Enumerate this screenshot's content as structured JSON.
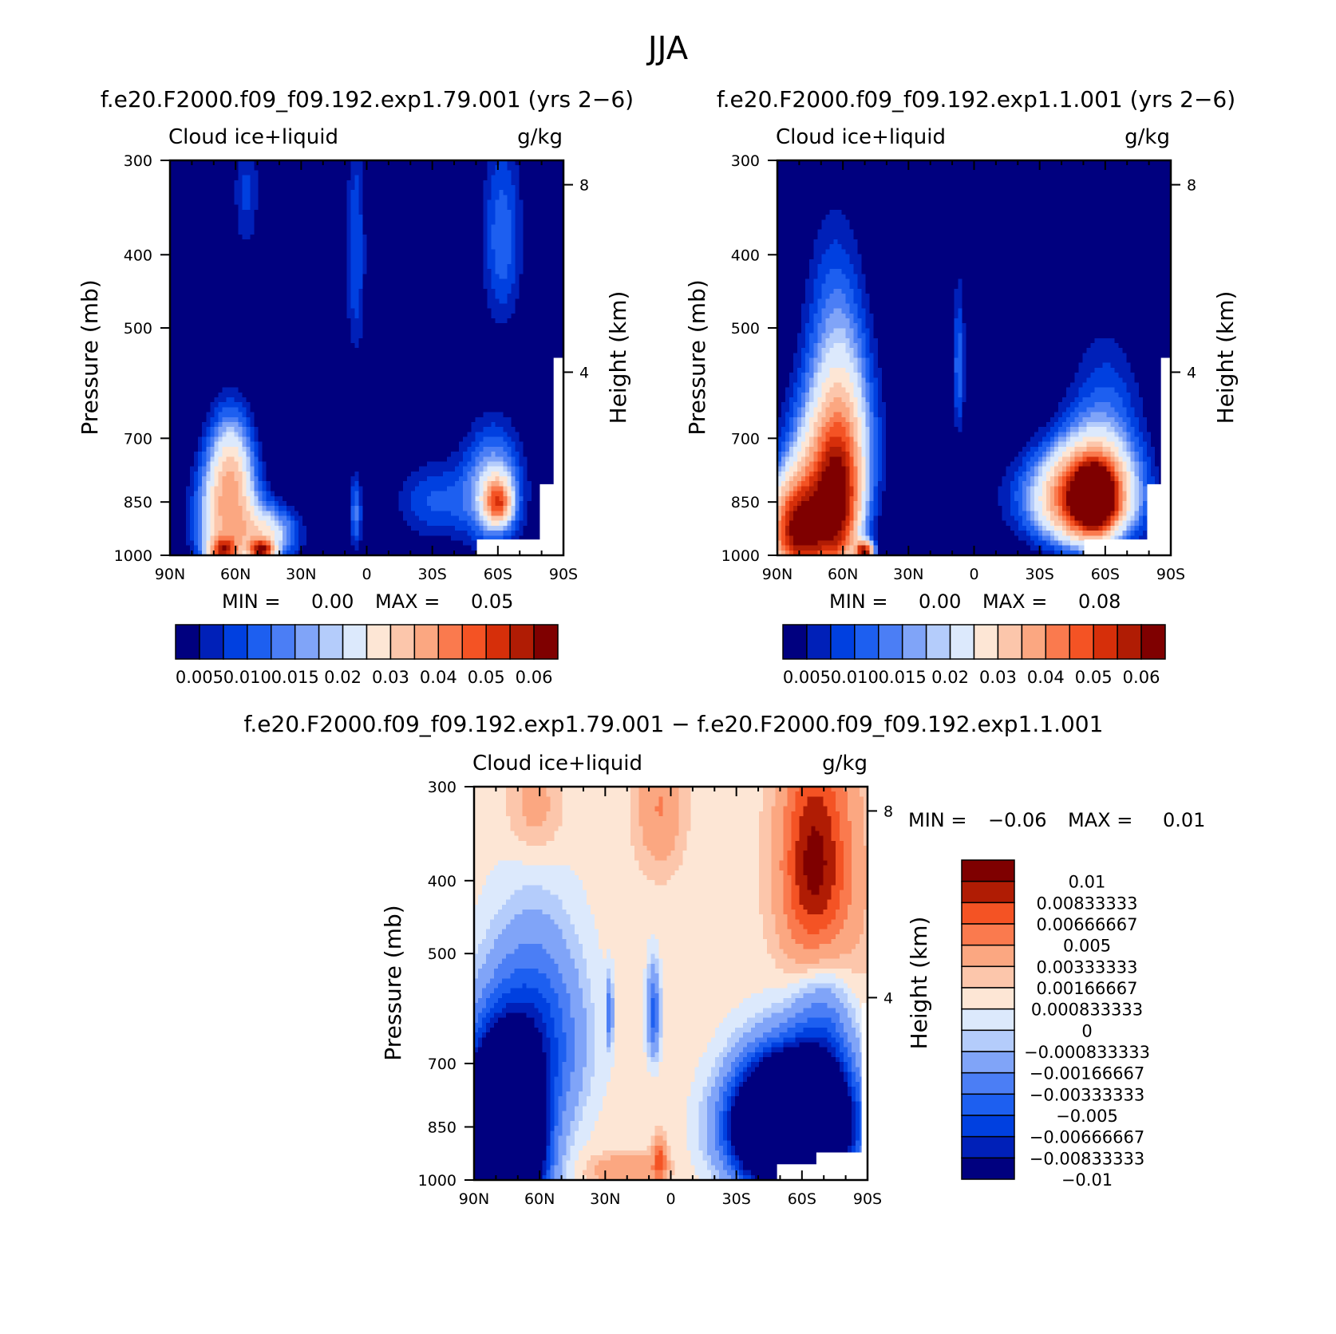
{
  "figure": {
    "season": "JJA",
    "case_a": "f.e20.F2000.f09_f09.192.exp1.79.001",
    "case_b": "f.e20.F2000.f09_f09.192.exp1.1.001",
    "diff_title": "f.e20.F2000.f09_f09.192.exp1.79.001 − f.e20.F2000.f09_f09.192.exp1.1.001"
  },
  "colors": {
    "seq": [
      "#00007f",
      "#0020b8",
      "#0040e0",
      "#1d5ff0",
      "#4b7ef5",
      "#80a4f8",
      "#b4ccfb",
      "#dce9fc",
      "#fde6d5",
      "#fcc6ab",
      "#fba781",
      "#fa7a4e",
      "#f45324",
      "#d62f0a",
      "#b01c04",
      "#7f0000"
    ],
    "diff": [
      "#00007f",
      "#0020b8",
      "#0040e0",
      "#1d5ff0",
      "#4b7ef5",
      "#80a4f8",
      "#b4ccfb",
      "#dce9fc",
      "#fde6d5",
      "#fcc6ab",
      "#fba781",
      "#fa7a4e",
      "#f45324",
      "#b01c04",
      "#7f0000"
    ]
  },
  "chart_data": [
    {
      "type": "contour",
      "id": "panel-a",
      "title": "f.e20.F2000.f09_f09.192.exp1.79.001 (yrs 2−6)",
      "left_label": "Cloud ice+liquid",
      "units": "g/kg",
      "ylabel": "Pressure (mb)",
      "y2label": "Height (km)",
      "xticks": [
        "90N",
        "60N",
        "30N",
        "0",
        "30S",
        "60S",
        "90S"
      ],
      "yticks": [
        "300",
        "400",
        "500",
        "700",
        "850",
        "1000"
      ],
      "y2ticks": [
        "8",
        "4"
      ],
      "stats": {
        "min_label": "MIN =",
        "min": "0.00",
        "max_label": "MAX =",
        "max": "0.05"
      },
      "colorbar_labels": [
        "0.005",
        "0.010",
        "0.015",
        "0.02",
        "0.03",
        "0.04",
        "0.05",
        "0.06"
      ],
      "blobs": [
        {
          "lat": 64,
          "p": 900,
          "w": 14,
          "h": 170,
          "v": 0.03
        },
        {
          "lat": 62,
          "p": 760,
          "w": 10,
          "h": 130,
          "v": 0.018
        },
        {
          "lat": 48,
          "p": 985,
          "w": 5,
          "h": 28,
          "v": 0.045
        },
        {
          "lat": 66,
          "p": 985,
          "w": 6,
          "h": 35,
          "v": 0.035
        },
        {
          "lat": 45,
          "p": 940,
          "w": 14,
          "h": 80,
          "v": 0.022
        },
        {
          "lat": -60,
          "p": 850,
          "w": 6,
          "h": 55,
          "v": 0.034
        },
        {
          "lat": -58,
          "p": 820,
          "w": 14,
          "h": 150,
          "v": 0.02
        },
        {
          "lat": -30,
          "p": 850,
          "w": 18,
          "h": 110,
          "v": 0.01
        },
        {
          "lat": 5,
          "p": 880,
          "w": 3,
          "h": 110,
          "v": 0.013
        },
        {
          "lat": 5,
          "p": 400,
          "w": 5,
          "h": 160,
          "v": 0.01
        },
        {
          "lat": -62,
          "p": 380,
          "w": 10,
          "h": 120,
          "v": 0.012
        },
        {
          "lat": 55,
          "p": 330,
          "w": 7,
          "h": 80,
          "v": 0.008
        }
      ]
    },
    {
      "type": "contour",
      "id": "panel-b",
      "title": "f.e20.F2000.f09_f09.192.exp1.1.001 (yrs 2−6)",
      "left_label": "Cloud ice+liquid",
      "units": "g/kg",
      "ylabel": "Pressure (mb)",
      "y2label": "Height (km)",
      "xticks": [
        "90N",
        "60N",
        "30N",
        "0",
        "30S",
        "60S",
        "90S"
      ],
      "yticks": [
        "300",
        "400",
        "500",
        "700",
        "850",
        "1000"
      ],
      "y2ticks": [
        "8",
        "4"
      ],
      "stats": {
        "min_label": "MIN =",
        "min": "0.00",
        "max_label": "MAX =",
        "max": "0.08"
      },
      "colorbar_labels": [
        "0.005",
        "0.010",
        "0.015",
        "0.02",
        "0.03",
        "0.04",
        "0.05",
        "0.06"
      ],
      "blobs": [
        {
          "lat": 80,
          "p": 930,
          "w": 14,
          "h": 140,
          "v": 0.06
        },
        {
          "lat": 62,
          "p": 880,
          "w": 10,
          "h": 180,
          "v": 0.042
        },
        {
          "lat": 66,
          "p": 760,
          "w": 18,
          "h": 180,
          "v": 0.028
        },
        {
          "lat": 60,
          "p": 620,
          "w": 14,
          "h": 180,
          "v": 0.014
        },
        {
          "lat": 50,
          "p": 990,
          "w": 4,
          "h": 30,
          "v": 0.055
        },
        {
          "lat": -55,
          "p": 840,
          "w": 8,
          "h": 70,
          "v": 0.065
        },
        {
          "lat": -52,
          "p": 840,
          "w": 18,
          "h": 120,
          "v": 0.04
        },
        {
          "lat": -45,
          "p": 840,
          "w": 28,
          "h": 120,
          "v": 0.02
        },
        {
          "lat": -60,
          "p": 700,
          "w": 18,
          "h": 200,
          "v": 0.012
        },
        {
          "lat": 7,
          "p": 560,
          "w": 3,
          "h": 140,
          "v": 0.012
        },
        {
          "lat": 65,
          "p": 450,
          "w": 14,
          "h": 140,
          "v": 0.006
        }
      ]
    },
    {
      "type": "contour",
      "id": "panel-diff",
      "title": "f.e20.F2000.f09_f09.192.exp1.79.001 − f.e20.F2000.f09_f09.192.exp1.1.001",
      "left_label": "Cloud ice+liquid",
      "units": "g/kg",
      "ylabel": "Pressure (mb)",
      "y2label": "Height (km)",
      "xticks": [
        "90N",
        "60N",
        "30N",
        "0",
        "30S",
        "60S",
        "90S"
      ],
      "yticks": [
        "300",
        "400",
        "500",
        "700",
        "850",
        "1000"
      ],
      "y2ticks": [
        "8",
        "4"
      ],
      "stats": {
        "min_label": "MIN =",
        "min": "−0.06",
        "max_label": "MAX =",
        "max": "0.01"
      },
      "colorbar_labels": [
        "0.01",
        "0.00833333",
        "0.00666667",
        "0.005",
        "0.00333333",
        "0.00166667",
        "0.000833333",
        "0",
        "−0.000833333",
        "−0.00166667",
        "−0.00333333",
        "−0.005",
        "−0.00666667",
        "−0.00833333",
        "−0.01"
      ],
      "blobs": [
        {
          "lat": 78,
          "p": 900,
          "w": 16,
          "h": 200,
          "v": -0.05
        },
        {
          "lat": 62,
          "p": 650,
          "w": 20,
          "h": 180,
          "v": -0.008
        },
        {
          "lat": -55,
          "p": 850,
          "w": 22,
          "h": 140,
          "v": -0.05
        },
        {
          "lat": -70,
          "p": 650,
          "w": 14,
          "h": 180,
          "v": -0.006
        },
        {
          "lat": -65,
          "p": 380,
          "w": 14,
          "h": 120,
          "v": 0.007
        },
        {
          "lat": -72,
          "p": 450,
          "w": 18,
          "h": 200,
          "v": 0.003
        },
        {
          "lat": 5,
          "p": 320,
          "w": 10,
          "h": 60,
          "v": 0.003
        },
        {
          "lat": 62,
          "p": 320,
          "w": 12,
          "h": 50,
          "v": 0.002
        },
        {
          "lat": 20,
          "p": 970,
          "w": 16,
          "h": 45,
          "v": 0.003
        },
        {
          "lat": 5,
          "p": 940,
          "w": 3,
          "h": 60,
          "v": 0.005
        },
        {
          "lat": 8,
          "p": 600,
          "w": 3,
          "h": 80,
          "v": -0.006
        },
        {
          "lat": 28,
          "p": 600,
          "w": 1.5,
          "h": 60,
          "v": -0.005
        }
      ]
    }
  ]
}
